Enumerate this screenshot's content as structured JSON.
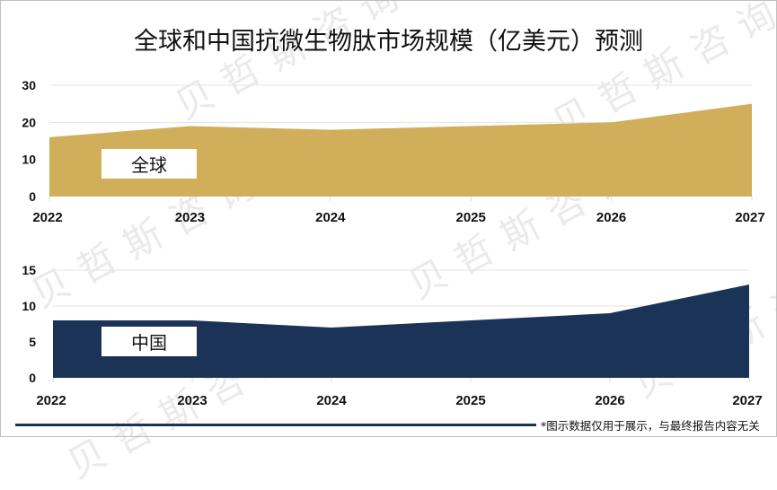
{
  "title": "全球和中国抗微生物肽市场规模（亿美元）预测",
  "watermark": "贝哲斯咨询",
  "footnote": "*图示数据仅用于展示，与最终报告内容无关",
  "colors": {
    "global_fill": "#d1ae5a",
    "china_fill": "#1c3358",
    "gridline": "#e6e6e6",
    "footer_line": "#1c3358"
  },
  "chart_data": [
    {
      "type": "area",
      "title": "全球",
      "series_label": "全球",
      "categories": [
        "2022",
        "2023",
        "2024",
        "2025",
        "2026",
        "2027"
      ],
      "values": [
        16,
        19,
        18,
        19,
        20,
        25
      ],
      "yticks": [
        "0",
        "10",
        "20",
        "30"
      ],
      "ylim": [
        0,
        30
      ],
      "xlabel": "",
      "ylabel": "",
      "grid": true,
      "legend": "none",
      "color": "#d1ae5a"
    },
    {
      "type": "area",
      "title": "中国",
      "series_label": "中国",
      "categories": [
        "2022",
        "2023",
        "2024",
        "2025",
        "2026",
        "2027"
      ],
      "values": [
        8,
        8,
        7,
        8,
        9,
        13
      ],
      "yticks": [
        "0",
        "5",
        "10",
        "15"
      ],
      "ylim": [
        0,
        15
      ],
      "xlabel": "",
      "ylabel": "",
      "grid": true,
      "legend": "none",
      "color": "#1c3358"
    }
  ]
}
